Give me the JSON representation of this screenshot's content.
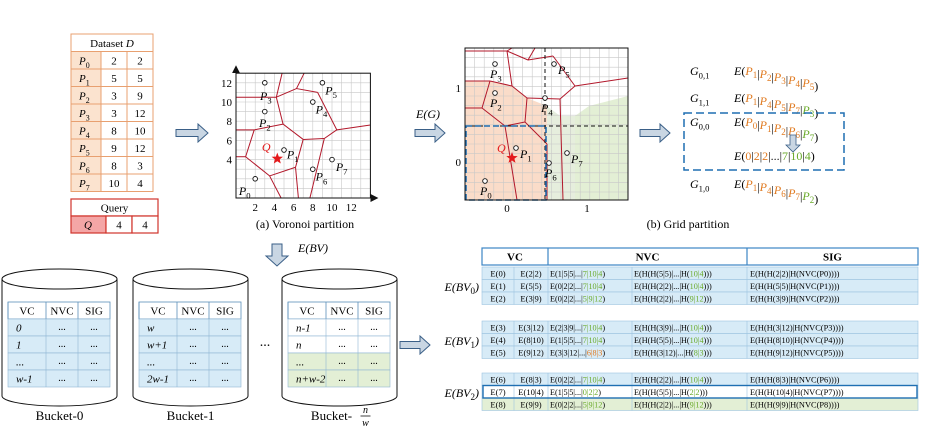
{
  "dataset": {
    "title": "Dataset D",
    "rows": [
      {
        "p": "P0",
        "x": "2",
        "y": "2"
      },
      {
        "p": "P1",
        "x": "5",
        "y": "5"
      },
      {
        "p": "P2",
        "x": "3",
        "y": "9"
      },
      {
        "p": "P3",
        "x": "3",
        "y": "12"
      },
      {
        "p": "P4",
        "x": "8",
        "y": "10"
      },
      {
        "p": "P5",
        "x": "9",
        "y": "12"
      },
      {
        "p": "P6",
        "x": "8",
        "y": "3"
      },
      {
        "p": "P7",
        "x": "10",
        "y": "4"
      }
    ]
  },
  "query": {
    "title": "Query",
    "label": "Q",
    "x": "4",
    "y": "4"
  },
  "voronoi": {
    "caption": "(a) Voronoi partition",
    "xticks": [
      "2",
      "4",
      "6",
      "8",
      "10",
      "12"
    ],
    "yticks": [
      "4",
      "6",
      "8",
      "10",
      "12"
    ],
    "points": [
      "P0",
      "P1",
      "P2",
      "P3",
      "P4",
      "P5",
      "P6",
      "P7"
    ],
    "query_label": "Q"
  },
  "grid": {
    "caption": "(b) Grid partition",
    "xticks": [
      "0",
      "1"
    ],
    "yticks": [
      "0",
      "1"
    ],
    "points": [
      "P0",
      "P1",
      "P2",
      "P3",
      "P4",
      "P5",
      "P6",
      "P7"
    ],
    "query_label": "Q"
  },
  "arrows": {
    "eg": "E(G)",
    "ebv": "E(BV)"
  },
  "gcells": [
    {
      "g": "G0,1",
      "e": "E(P1|P2|P3|P4|P5)"
    },
    {
      "g": "G1,1",
      "e": "E(P1|P4|P5|P7|P3)"
    },
    {
      "g": "G0,0",
      "e": "E(P0|P1|P2|P6|P7)"
    },
    {
      "g": "",
      "e": "E(0|2|2|...|7|10|4)"
    },
    {
      "g": "G1,0",
      "e": "E(P1|P4|P6|P7|P2)"
    }
  ],
  "buckets": [
    {
      "name": "Bucket-0",
      "headers": [
        "VC",
        "NVC",
        "SIG"
      ],
      "rows": [
        "0",
        "1",
        "...",
        "w-1"
      ]
    },
    {
      "name": "Bucket-1",
      "headers": [
        "VC",
        "NVC",
        "SIG"
      ],
      "rows": [
        "w",
        "w+1",
        "...",
        "2w-1"
      ]
    },
    {
      "name": "Bucket-n/w",
      "headers": [
        "VC",
        "NVC",
        "SIG"
      ],
      "rows": [
        "n-1",
        "n",
        "...",
        "n+w-2"
      ]
    }
  ],
  "cell_dots": "...",
  "ellipsis": "...",
  "enc_table": {
    "headers": [
      "VC",
      "NVC",
      "SIG"
    ],
    "groups": [
      {
        "label": "E(BV0)",
        "rows": [
          {
            "vc": "E(0)",
            "a": "E(2|2)",
            "b": "E(1|5|5|...|7|10|4)",
            "c": "E(H(H(5|5)|...|H(10|4)))",
            "d": "E(H(H(2|2)|H(NVC(P0))))"
          },
          {
            "vc": "E(1)",
            "a": "E(5|5)",
            "b": "E(0|2|2|...|7|10|4)",
            "c": "E(H(H(2|2)|...|H(10|4)))",
            "d": "E(H(H(5|5)|H(NVC(P1))))"
          },
          {
            "vc": "E(2)",
            "a": "E(3|9)",
            "b": "E(0|2|2|...|5|9|12)",
            "c": "E(H(H(2|2)|...|H(9|12)))",
            "d": "E(H(H(3|9)|H(NVC(P2))))"
          }
        ]
      },
      {
        "label": "E(BV1)",
        "rows": [
          {
            "vc": "E(3)",
            "a": "E(3|12)",
            "b": "E(2|3|9|...|7|10|4)",
            "c": "E(H(H(3|9)|...|H(10|4)))",
            "d": "E(H(H(3|12)|H(NVC(P3))))"
          },
          {
            "vc": "E(4)",
            "a": "E(8|10)",
            "b": "E(1|5|5|...|7|10|4)",
            "c": "E(H(H(5|5)|...|H(10|4)))",
            "d": "E(H(H(8|10)|H(NVC(P4))))"
          },
          {
            "vc": "E(5)",
            "a": "E(9|12)",
            "b": "E(3|3|12|...|6|8|3)",
            "c": "E(H(H(3|12)|...|H(8|3)))",
            "d": "E(H(H(9|12)|H(NVC(P5))))"
          }
        ]
      },
      {
        "label": "E(BV2)",
        "rows": [
          {
            "vc": "E(6)",
            "a": "E(8|3)",
            "b": "E(0|2|2|...|7|10|4)",
            "c": "E(H(H(2|2)|...|H(10|4)))",
            "d": "E(H(H(8|3)|H(NVC(P6))))"
          },
          {
            "vc": "E(7)",
            "a": "E(10|4)",
            "b": "E(1|5|5|...|0|2|2)",
            "c": "E(H(H(5|5)|...|H(2|2)))",
            "d": "E(H(H(10|4)|H(NVC(P7))))"
          },
          {
            "vc": "E(8)",
            "a": "E(9|9)",
            "b": "E(0|2|2|...|5|9|12)",
            "c": "E(H(H(2|2)|...|H(9|12)))",
            "d": "E(H(H(9|9)|H(NVC(P8))))"
          }
        ]
      }
    ]
  },
  "colors": {
    "orange_fill": "#fbe3cf",
    "orange_border": "#e8a070",
    "red_header": "#f4a6a6",
    "red_border": "#d0342c",
    "blue": "#1f6fb2",
    "light_blue": "#d7ebf7",
    "light_green": "#e3efd5",
    "peach": "#f9dccb",
    "voronoi_red": "#b2182b",
    "green_text": "#6aaa2a",
    "orange_text": "#e07a20",
    "grid_line": "#c8c8c8"
  }
}
